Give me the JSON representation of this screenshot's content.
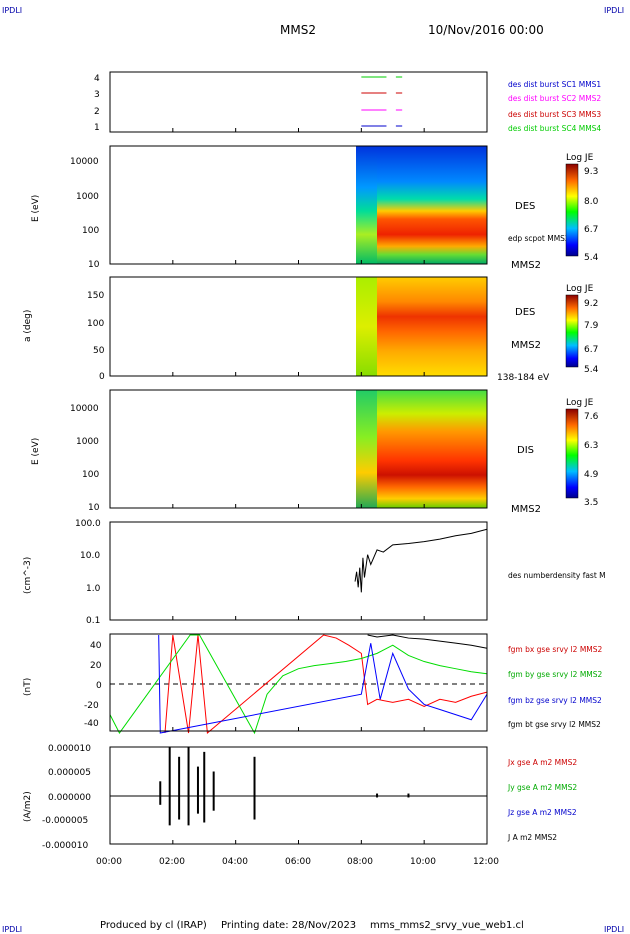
{
  "header": {
    "corner_tl": "IPDLI",
    "corner_tr": "IPDLI",
    "corner_bl": "IPDLI",
    "corner_br": "IPDLI",
    "spacecraft": "MMS2",
    "datetime": "10/Nov/2016 00:00"
  },
  "footer": {
    "credit": "Produced by cl (IRAP)",
    "printed": "Printing date: 28/Nov/2023",
    "source": "mms_mms2_srvy_vue_web1.cl"
  },
  "time_axis": {
    "labels": [
      "00:00",
      "02:00",
      "04:00",
      "06:00",
      "08:00",
      "10:00",
      "12:00"
    ],
    "range_hours": [
      0,
      12
    ]
  },
  "colors": {
    "red": "#ff0000",
    "green": "#00cc00",
    "blue": "#0000ff",
    "magenta": "#ff00ff",
    "black": "#000000",
    "legend_blue": "#0000cc"
  },
  "chart_data": [
    {
      "type": "line",
      "panel": "availability",
      "yticks": [
        "4",
        "3",
        "2",
        "1"
      ],
      "legend": [
        {
          "label": "des dist burst SC1 MMS1",
          "color": "#0000cc"
        },
        {
          "label": "des dist burst SC2 MMS2",
          "color": "#ff00ff"
        },
        {
          "label": "des dist burst SC3 MMS3",
          "color": "#cc0000"
        },
        {
          "label": "des dist burst SC4 MMS4",
          "color": "#00cc00"
        }
      ],
      "series": [
        {
          "level": 4,
          "color": "#00cc00",
          "segments": [
            [
              8.0,
              8.8
            ],
            [
              9.1,
              9.3
            ]
          ]
        },
        {
          "level": 3,
          "color": "#cc0000",
          "segments": [
            [
              8.0,
              8.8
            ],
            [
              9.1,
              9.3
            ]
          ]
        },
        {
          "level": 2,
          "color": "#ff00ff",
          "segments": [
            [
              8.0,
              8.8
            ],
            [
              9.1,
              9.3
            ]
          ]
        },
        {
          "level": 1,
          "color": "#0000cc",
          "segments": [
            [
              8.0,
              8.8
            ],
            [
              9.1,
              9.3
            ]
          ]
        }
      ]
    },
    {
      "type": "heatmap",
      "panel": "des_energy",
      "ylabel": "E (eV)",
      "yticks": [
        "10000",
        "1000",
        "100",
        "10"
      ],
      "ylim": [
        10,
        30000
      ],
      "scale": "log",
      "right_labels": [
        "DES",
        "edp scpot MMS2",
        "MMS2"
      ],
      "colorbar": {
        "title": "Log JE",
        "ticks": [
          "9.3",
          "8.0",
          "6.7",
          "5.4"
        ],
        "range": [
          5.4,
          9.3
        ]
      },
      "data_start_hours": 7.75
    },
    {
      "type": "heatmap",
      "panel": "des_pitch",
      "ylabel": "a (deg)",
      "yticks": [
        "150",
        "100",
        "50",
        "0"
      ],
      "ylim": [
        0,
        180
      ],
      "right_labels": [
        "DES",
        "MMS2",
        "138-184 eV"
      ],
      "colorbar": {
        "title": "Log JE",
        "ticks": [
          "9.2",
          "7.9",
          "6.7",
          "5.4"
        ],
        "range": [
          5.4,
          9.2
        ]
      },
      "data_start_hours": 7.75
    },
    {
      "type": "heatmap",
      "panel": "dis_energy",
      "ylabel": "E (eV)",
      "yticks": [
        "10000",
        "1000",
        "100",
        "10"
      ],
      "ylim": [
        10,
        30000
      ],
      "scale": "log",
      "right_labels": [
        "DIS",
        "MMS2"
      ],
      "colorbar": {
        "title": "Log JE",
        "ticks": [
          "7.6",
          "6.3",
          "4.9",
          "3.5"
        ],
        "range": [
          3.5,
          7.6
        ]
      },
      "data_start_hours": 7.75
    },
    {
      "type": "line",
      "panel": "density",
      "ylabel": "(cm^-3)",
      "yticks": [
        "100.0",
        "10.0",
        "1.0",
        "0.1"
      ],
      "ylim": [
        0.1,
        100
      ],
      "scale": "log",
      "legend": [
        {
          "label": "des numberdensity fast M",
          "color": "#000000"
        }
      ],
      "series": [
        {
          "name": "des numberdensity fast M",
          "color": "#000000",
          "x": [
            7.8,
            7.85,
            7.9,
            7.95,
            8.0,
            8.05,
            8.1,
            8.2,
            8.3,
            8.5,
            8.7,
            9.0,
            9.5,
            10.0,
            10.5,
            11.0,
            11.5,
            12.0
          ],
          "y": [
            1.5,
            3,
            1.0,
            4,
            0.7,
            8,
            2,
            10,
            5,
            14,
            12,
            20,
            22,
            25,
            30,
            38,
            45,
            60
          ]
        }
      ]
    },
    {
      "type": "line",
      "panel": "fgm",
      "ylabel": "(nT)",
      "yticks": [
        "40",
        "20",
        "0",
        "-20",
        "-40"
      ],
      "ylim": [
        -48,
        48
      ],
      "legend": [
        {
          "label": "fgm bx gse srvy l2 MMS2",
          "color": "#cc0000"
        },
        {
          "label": "fgm by gse srvy l2 MMS2",
          "color": "#00aa00"
        },
        {
          "label": "fgm bz gse srvy l2 MMS2",
          "color": "#0000cc"
        },
        {
          "label": "fgm bt gse srvy l2 MMS2",
          "color": "#000000"
        }
      ],
      "series": [
        {
          "name": "fgm bx gse srvy l2 MMS2",
          "color": "#ff0000",
          "x": [
            1.75,
            2.0,
            2.5,
            2.8,
            3.1,
            6.8,
            7.2,
            7.6,
            8.0,
            8.2,
            8.5,
            9.0,
            9.5,
            10.0,
            10.5,
            11.0,
            11.5,
            12.0
          ],
          "y": [
            -48,
            48,
            -48,
            48,
            -48,
            48,
            45,
            38,
            30,
            -20,
            -15,
            -18,
            -15,
            -22,
            -15,
            -18,
            -12,
            -8
          ]
        },
        {
          "name": "fgm by gse srvy l2 MMS2",
          "color": "#00dd00",
          "x": [
            0.0,
            0.3,
            2.55,
            2.85,
            4.6,
            5.0,
            5.5,
            6.0,
            6.5,
            7.0,
            7.5,
            8.0,
            8.5,
            9.0,
            9.5,
            10.0,
            10.5,
            11.0,
            11.5,
            12.0
          ],
          "y": [
            -30,
            -48,
            48,
            48,
            -48,
            -10,
            8,
            15,
            18,
            20,
            22,
            25,
            30,
            38,
            28,
            22,
            18,
            15,
            12,
            10
          ]
        },
        {
          "name": "fgm bz gse srvy l2 MMS2",
          "color": "#0000ff",
          "x": [
            1.55,
            1.6,
            8.0,
            8.3,
            8.6,
            9.0,
            9.5,
            10.0,
            10.5,
            11.0,
            11.5,
            12.0
          ],
          "y": [
            48,
            -48,
            -10,
            40,
            -15,
            30,
            -5,
            -20,
            -25,
            -30,
            -35,
            -10
          ]
        },
        {
          "name": "fgm bt gse srvy l2 MMS2",
          "color": "#000000",
          "x": [
            8.2,
            8.5,
            9.0,
            9.5,
            10.0,
            10.5,
            11.0,
            11.5,
            12.0
          ],
          "y": [
            48,
            46,
            48,
            45,
            44,
            42,
            40,
            38,
            35
          ]
        }
      ]
    },
    {
      "type": "line",
      "panel": "current",
      "ylabel": "(A/m2)",
      "yticks": [
        "0.000010",
        "0.000005",
        "0.000000",
        "-0.000005",
        "-0.000010"
      ],
      "ylim": [
        -1e-05,
        1e-05
      ],
      "legend": [
        {
          "label": "Jx gse A m2 MMS2",
          "color": "#cc0000"
        },
        {
          "label": "Jy gse A m2 MMS2",
          "color": "#00aa00"
        },
        {
          "label": "Jz gse A m2 MMS2",
          "color": "#0000cc"
        },
        {
          "label": "J A m2 MMS2",
          "color": "#000000"
        }
      ],
      "series": [
        {
          "name": "J A m2 MMS2",
          "color": "#000000",
          "x": [
            1.6,
            1.9,
            2.2,
            2.5,
            2.8,
            3.0,
            3.3,
            4.6,
            8.5,
            9.5
          ],
          "y": [
            3e-06,
            1e-05,
            8e-06,
            1e-05,
            6e-06,
            9e-06,
            5e-06,
            8e-06,
            5e-07,
            5e-07
          ]
        }
      ]
    }
  ]
}
